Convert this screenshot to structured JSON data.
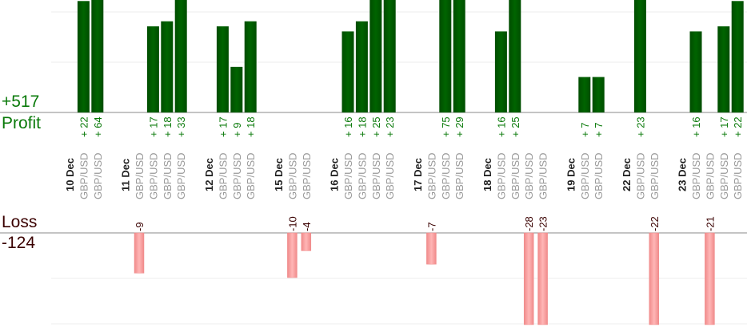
{
  "summary": {
    "profit_total": "+517",
    "profit_label": "Profit",
    "loss_label": "Loss",
    "loss_total": "-124"
  },
  "colors": {
    "profit": "#006400",
    "profit_text": "#0a7a0a",
    "loss_fill": "#ffb6b6",
    "loss_edge": "#f08a8a",
    "loss_text": "#3a0000",
    "pair_text": "#999999"
  },
  "chart_data": {
    "type": "bar",
    "title": "",
    "grid": true,
    "groups": [
      {
        "date": "10 Dec",
        "trades": [
          {
            "pair": "GBP/USD",
            "pl": 22
          },
          {
            "pair": "GBP/USD",
            "pl": 64
          }
        ]
      },
      {
        "date": "11 Dec",
        "trades": [
          {
            "pair": "GBP/USD",
            "pl": -9
          },
          {
            "pair": "GBP/USD",
            "pl": 17
          },
          {
            "pair": "GBP/USD",
            "pl": 18
          },
          {
            "pair": "GBP/USD",
            "pl": 33
          }
        ]
      },
      {
        "date": "12 Dec",
        "trades": [
          {
            "pair": "GBP/USD",
            "pl": 17
          },
          {
            "pair": "GBP/USD",
            "pl": 9
          },
          {
            "pair": "GBP/USD",
            "pl": 18
          }
        ]
      },
      {
        "date": "15 Dec",
        "trades": [
          {
            "pair": "GBP/USD",
            "pl": -10
          },
          {
            "pair": "GBP/USD",
            "pl": -4
          }
        ]
      },
      {
        "date": "16 Dec",
        "trades": [
          {
            "pair": "GBP/USD",
            "pl": 16
          },
          {
            "pair": "GBP/USD",
            "pl": 18
          },
          {
            "pair": "GBP/USD",
            "pl": 25
          },
          {
            "pair": "GBP/USD",
            "pl": 23
          }
        ]
      },
      {
        "date": "17 Dec",
        "trades": [
          {
            "pair": "GBP/USD",
            "pl": -7
          },
          {
            "pair": "GBP/USD",
            "pl": 75
          },
          {
            "pair": "GBP/USD",
            "pl": 29
          }
        ]
      },
      {
        "date": "18 Dec",
        "trades": [
          {
            "pair": "GBP/USD",
            "pl": 16
          },
          {
            "pair": "GBP/USD",
            "pl": 25
          },
          {
            "pair": "GBP/USD",
            "pl": -28
          },
          {
            "pair": "GBP/USD",
            "pl": -23
          }
        ]
      },
      {
        "date": "19 Dec",
        "trades": [
          {
            "pair": "GBP/USD",
            "pl": 7
          },
          {
            "pair": "GBP/USD",
            "pl": 7
          }
        ]
      },
      {
        "date": "22 Dec",
        "trades": [
          {
            "pair": "GBP/USD",
            "pl": 23
          },
          {
            "pair": "GBP/USD",
            "pl": -22
          }
        ]
      },
      {
        "date": "23 Dec",
        "trades": [
          {
            "pair": "GBP/USD",
            "pl": 16
          },
          {
            "pair": "GBP/USD",
            "pl": -21
          },
          {
            "pair": "GBP/USD",
            "pl": 17
          },
          {
            "pair": "GBP/USD",
            "pl": 22
          }
        ]
      }
    ]
  }
}
